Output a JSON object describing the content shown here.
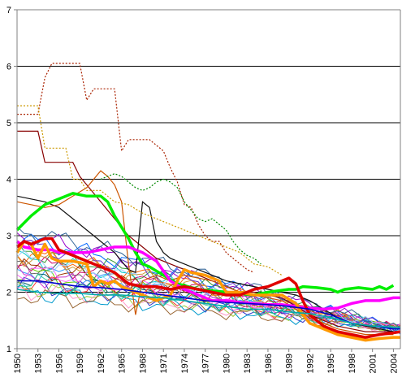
{
  "chart_data": {
    "type": "line",
    "title": "",
    "xlabel": "",
    "ylabel": "",
    "ylim": [
      1,
      7
    ],
    "yticks": [
      "1",
      "2",
      "3",
      "4",
      "5",
      "6",
      "7"
    ],
    "x_start": 1950,
    "x_end": 2005,
    "xticks": [
      "1950",
      "1953",
      "1956",
      "1959",
      "1962",
      "1965",
      "1968",
      "1971",
      "1974",
      "1977",
      "1980",
      "1983",
      "1986",
      "1989",
      "1992",
      "1995",
      "1998",
      "2001",
      "2004"
    ],
    "grid": {
      "horizontal": true,
      "vertical": false
    },
    "legend": "none",
    "highlighted_series": [
      {
        "color": "#00ee00",
        "x": [
          1950,
          1952,
          1954,
          1956,
          1958,
          1960,
          1962,
          1963,
          1964,
          1966,
          1967,
          1968,
          1969,
          1971,
          1973,
          1976,
          1980,
          1984,
          1986,
          1989,
          1990,
          1991,
          1993,
          1995,
          1996,
          1997,
          1999,
          2001,
          2002,
          2003,
          2004
        ],
        "y": [
          3.1,
          3.35,
          3.55,
          3.65,
          3.75,
          3.7,
          3.7,
          3.6,
          3.35,
          2.95,
          2.7,
          2.5,
          2.45,
          2.3,
          2.15,
          2.05,
          2.0,
          1.95,
          2.0,
          2.05,
          2.05,
          2.1,
          2.08,
          2.05,
          2.0,
          2.05,
          2.08,
          2.05,
          2.1,
          2.05,
          2.12
        ]
      },
      {
        "color": "#ff00ff",
        "x": [
          1950,
          1951,
          1953,
          1955,
          1956,
          1958,
          1960,
          1962,
          1964,
          1966,
          1968,
          1970,
          1972,
          1974,
          1976,
          1978,
          1980,
          1982,
          1984,
          1986,
          1988,
          1990,
          1992,
          1994,
          1996,
          1998,
          2000,
          2002,
          2004,
          2005
        ],
        "y": [
          2.9,
          2.8,
          2.75,
          2.75,
          2.7,
          2.7,
          2.7,
          2.75,
          2.8,
          2.8,
          2.7,
          2.55,
          2.2,
          2.05,
          1.95,
          1.85,
          1.85,
          1.82,
          1.8,
          1.78,
          1.78,
          1.75,
          1.72,
          1.7,
          1.72,
          1.8,
          1.85,
          1.85,
          1.9,
          1.9
        ]
      },
      {
        "color": "#ff9900",
        "x": [
          1950,
          1951,
          1952,
          1953,
          1954,
          1955,
          1956,
          1958,
          1960,
          1961,
          1962,
          1963,
          1964,
          1965,
          1966,
          1967,
          1968,
          1969,
          1970,
          1971,
          1972,
          1973,
          1974,
          1975,
          1977,
          1979,
          1980,
          1982,
          1984,
          1986,
          1988,
          1990,
          1991,
          1992,
          1994,
          1996,
          1998,
          2000,
          2002,
          2004,
          2005
        ],
        "y": [
          2.7,
          2.9,
          2.85,
          2.6,
          2.85,
          2.6,
          2.55,
          2.55,
          2.5,
          2.1,
          2.2,
          2.15,
          2.2,
          2.1,
          2.05,
          2.0,
          1.95,
          1.9,
          1.85,
          1.9,
          1.95,
          2.2,
          2.4,
          2.35,
          2.3,
          2.2,
          2.0,
          2.0,
          1.95,
          1.95,
          1.95,
          1.8,
          1.6,
          1.45,
          1.35,
          1.25,
          1.2,
          1.15,
          1.18,
          1.2,
          1.2
        ]
      },
      {
        "color": "#e00000",
        "x": [
          1950,
          1951,
          1952,
          1953,
          1954,
          1955,
          1956,
          1958,
          1960,
          1962,
          1964,
          1966,
          1968,
          1970,
          1972,
          1974,
          1976,
          1978,
          1980,
          1982,
          1984,
          1986,
          1988,
          1989,
          1990,
          1991,
          1992,
          1993,
          1994,
          1996,
          1998,
          2000,
          2002,
          2004,
          2005
        ],
        "y": [
          2.8,
          2.9,
          2.85,
          2.9,
          2.95,
          2.95,
          2.75,
          2.65,
          2.55,
          2.45,
          2.35,
          2.15,
          2.1,
          2.1,
          2.05,
          2.1,
          2.05,
          2.0,
          1.95,
          1.95,
          2.05,
          2.1,
          2.2,
          2.25,
          2.15,
          1.85,
          1.6,
          1.5,
          1.4,
          1.3,
          1.25,
          1.2,
          1.25,
          1.28,
          1.3
        ]
      },
      {
        "color": "#0000cc",
        "x": [
          1950,
          1953,
          1956,
          1959,
          1962,
          1965,
          1968,
          1971,
          1974,
          1977,
          1980,
          1983,
          1986,
          1989,
          1992,
          1995,
          1998,
          2001,
          2004,
          2005
        ],
        "y": [
          2.2,
          2.2,
          2.15,
          2.1,
          2.08,
          2.05,
          2.0,
          1.95,
          1.9,
          1.85,
          1.82,
          1.8,
          1.78,
          1.75,
          1.7,
          1.6,
          1.45,
          1.4,
          1.35,
          1.35
        ]
      },
      {
        "color": "#00aaaa",
        "x": [
          1950,
          1953,
          1956,
          1959,
          1962,
          1965,
          1968,
          1971,
          1974,
          1977,
          1980,
          1983,
          1986,
          1989,
          1992,
          1995,
          1998,
          2001,
          2004,
          2005
        ],
        "y": [
          2.05,
          2.0,
          1.98,
          1.98,
          1.95,
          1.95,
          1.92,
          1.9,
          1.85,
          1.8,
          1.75,
          1.7,
          1.7,
          1.65,
          1.62,
          1.55,
          1.45,
          1.4,
          1.38,
          1.38
        ]
      }
    ],
    "dotted_series": [
      {
        "color": "#aa2200",
        "x": [
          1950,
          1951,
          1952,
          1953,
          1954,
          1955,
          1956,
          1957,
          1958,
          1959,
          1960,
          1961,
          1962,
          1963,
          1964,
          1965,
          1966,
          1967,
          1968,
          1969,
          1970,
          1971,
          1972,
          1973,
          1974,
          1975,
          1976,
          1977,
          1978,
          1979,
          1980,
          1981,
          1982,
          1983,
          1984
        ],
        "y": [
          5.15,
          5.15,
          5.15,
          5.15,
          5.8,
          6.05,
          6.05,
          6.05,
          6.05,
          6.05,
          5.4,
          5.6,
          5.6,
          5.6,
          5.6,
          4.5,
          4.7,
          4.7,
          4.7,
          4.7,
          4.6,
          4.5,
          4.2,
          3.95,
          3.55,
          3.5,
          3.2,
          3.0,
          2.9,
          2.9,
          2.7,
          2.6,
          2.5,
          2.4,
          2.35
        ]
      },
      {
        "color": "#cc9900",
        "x": [
          1950,
          1951,
          1952,
          1953,
          1954,
          1955,
          1956,
          1957,
          1958,
          1959,
          1960,
          1962,
          1964,
          1966,
          1968,
          1970,
          1972,
          1974,
          1976,
          1978,
          1980,
          1982,
          1984,
          1986,
          1988
        ],
        "y": [
          5.3,
          5.3,
          5.3,
          5.3,
          4.55,
          4.55,
          4.55,
          4.55,
          4.0,
          4.0,
          3.8,
          3.8,
          3.6,
          3.55,
          3.4,
          3.3,
          3.2,
          3.1,
          3.0,
          2.9,
          2.8,
          2.7,
          2.5,
          2.45,
          2.3
        ]
      },
      {
        "color": "#008800",
        "x": [
          1962,
          1963,
          1964,
          1965,
          1966,
          1967,
          1968,
          1969,
          1970,
          1971,
          1972,
          1973,
          1974,
          1975,
          1976,
          1977,
          1978,
          1979,
          1980,
          1981,
          1982,
          1983,
          1984,
          1985
        ],
        "y": [
          4.0,
          4.05,
          4.1,
          4.05,
          3.95,
          3.85,
          3.8,
          3.85,
          3.95,
          4.0,
          3.95,
          3.85,
          3.6,
          3.45,
          3.3,
          3.25,
          3.3,
          3.2,
          3.1,
          2.9,
          2.75,
          2.65,
          2.6,
          2.5
        ]
      }
    ],
    "notable_series": [
      {
        "color": "#880000",
        "x": [
          1950,
          1951,
          1952,
          1953,
          1954,
          1955,
          1956,
          1957,
          1958,
          1959,
          1960,
          1962,
          1964,
          1966,
          1968,
          1970,
          1972,
          1974,
          1976,
          1978,
          1980,
          1982,
          1984,
          1986,
          1988,
          1990,
          1992,
          1994,
          1996,
          1998,
          2000,
          2002,
          2004
        ],
        "y": [
          4.85,
          4.85,
          4.85,
          4.85,
          4.3,
          4.3,
          4.3,
          4.3,
          4.3,
          4.05,
          3.9,
          3.6,
          3.3,
          3.0,
          2.8,
          2.6,
          2.5,
          2.4,
          2.3,
          2.2,
          2.1,
          2.0,
          2.0,
          1.95,
          1.9,
          1.75,
          1.6,
          1.5,
          1.4,
          1.35,
          1.3,
          1.3,
          1.3
        ]
      },
      {
        "color": "#111111",
        "x": [
          1950,
          1952,
          1954,
          1956,
          1958,
          1960,
          1962,
          1964,
          1966,
          1967,
          1968,
          1969,
          1970,
          1971,
          1972,
          1974,
          1976,
          1978,
          1980,
          1982,
          1984,
          1986,
          1988,
          1990,
          1992,
          1994,
          1996,
          1998,
          2000,
          2002,
          2004
        ],
        "y": [
          3.7,
          3.65,
          3.6,
          3.5,
          3.3,
          3.1,
          2.9,
          2.7,
          2.4,
          2.35,
          3.6,
          3.5,
          2.9,
          2.7,
          2.6,
          2.5,
          2.4,
          2.3,
          2.2,
          2.15,
          2.1,
          2.05,
          2.0,
          1.95,
          1.85,
          1.7,
          1.55,
          1.45,
          1.4,
          1.35,
          1.3
        ]
      },
      {
        "color": "#cc5500",
        "x": [
          1950,
          1952,
          1954,
          1956,
          1958,
          1960,
          1962,
          1963,
          1964,
          1965,
          1966,
          1967,
          1968,
          1970,
          1972,
          1974,
          1976,
          1978,
          1980,
          1982,
          1984,
          1986,
          1988,
          1990,
          1992,
          1994,
          1996,
          1998,
          2000,
          2002,
          2004
        ],
        "y": [
          3.6,
          3.55,
          3.5,
          3.55,
          3.7,
          3.85,
          4.15,
          4.05,
          3.9,
          3.6,
          2.5,
          1.6,
          2.2,
          2.3,
          2.2,
          2.3,
          2.25,
          2.2,
          2.1,
          2.0,
          1.95,
          1.9,
          1.85,
          1.7,
          1.55,
          1.45,
          1.35,
          1.3,
          1.25,
          1.25,
          1.25
        ]
      }
    ],
    "thin_series": [
      {
        "color": "#9900cc",
        "base": 3.0,
        "phase": 0.3
      },
      {
        "color": "#0066ff",
        "base": 2.95,
        "phase": 1.1
      },
      {
        "color": "#339933",
        "base": 2.75,
        "phase": 2.0
      },
      {
        "color": "#ff6600",
        "base": 2.7,
        "phase": 0.7
      },
      {
        "color": "#00cccc",
        "base": 2.6,
        "phase": 1.7
      },
      {
        "color": "#cc0066",
        "base": 2.55,
        "phase": 2.6
      },
      {
        "color": "#666666",
        "base": 2.5,
        "phase": 0.1
      },
      {
        "color": "#993300",
        "base": 2.45,
        "phase": 1.4
      },
      {
        "color": "#3399ff",
        "base": 2.4,
        "phase": 2.3
      },
      {
        "color": "#66cc00",
        "base": 2.35,
        "phase": 0.9
      },
      {
        "color": "#cc33cc",
        "base": 2.3,
        "phase": 1.9
      },
      {
        "color": "#006666",
        "base": 2.25,
        "phase": 2.8
      },
      {
        "color": "#ff3333",
        "base": 2.2,
        "phase": 0.5
      },
      {
        "color": "#3333cc",
        "base": 2.15,
        "phase": 1.3
      },
      {
        "color": "#99cc33",
        "base": 2.1,
        "phase": 2.1
      },
      {
        "color": "#ff99cc",
        "base": 2.05,
        "phase": 0.2
      },
      {
        "color": "#0099cc",
        "base": 2.0,
        "phase": 1.6
      },
      {
        "color": "#996633",
        "base": 1.95,
        "phase": 2.5
      },
      {
        "color": "#cc9933",
        "base": 2.65,
        "phase": 0.6
      },
      {
        "color": "#6633cc",
        "base": 2.85,
        "phase": 1.2
      },
      {
        "color": "#33cc99",
        "base": 2.2,
        "phase": 2.9
      },
      {
        "color": "#ff66ff",
        "base": 2.4,
        "phase": 0.8
      },
      {
        "color": "#336699",
        "base": 3.1,
        "phase": 2.2
      },
      {
        "color": "#99ccff",
        "base": 2.6,
        "phase": 1.5
      }
    ]
  }
}
